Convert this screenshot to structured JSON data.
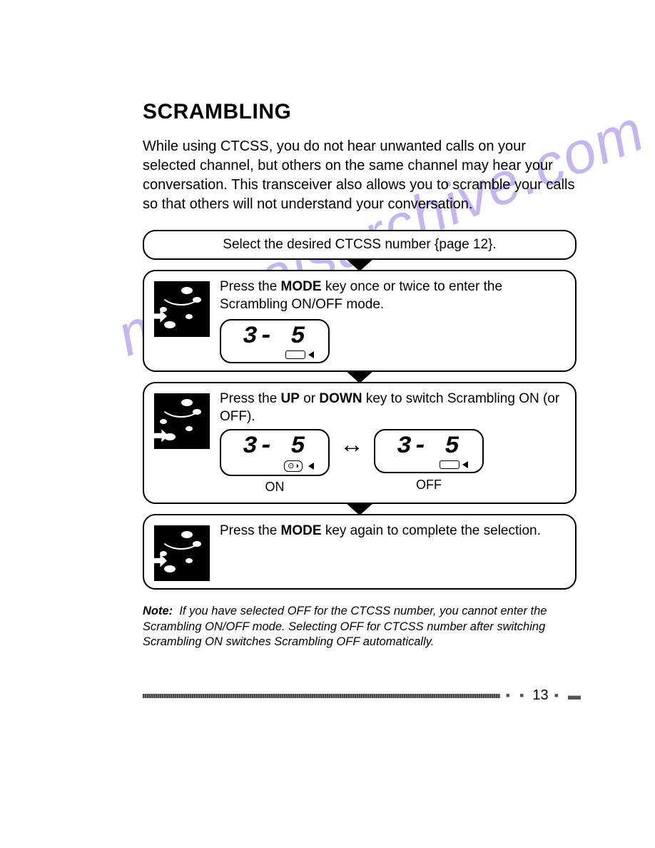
{
  "title": "SCRAMBLING",
  "intro": "While using CTCSS, you do not hear unwanted calls on your selected channel, but others on the same channel may hear your conversation. This transceiver also allows you to scramble your calls so that others will not understand your conversation.",
  "watermark": "manualsarchive.com",
  "steps": {
    "s1": "Select the desired CTCSS number {page 12}.",
    "s2_pre": "Press the ",
    "s2_key": "MODE",
    "s2_post": " key once or twice to enter the Scrambling ON/OFF mode.",
    "s3_pre": "Press the ",
    "s3_key1": "UP",
    "s3_mid": " or ",
    "s3_key2": "DOWN",
    "s3_post": " key to switch Scrambling ON (or OFF).",
    "s4_pre": "Press the ",
    "s4_key": "MODE",
    "s4_post": " key again to complete the selection."
  },
  "lcd": {
    "digits": "3- 5",
    "on_label": "ON",
    "off_label": "OFF"
  },
  "note_label": "Note:",
  "note_text": "If you have selected OFF for the CTCSS number, you cannot enter the Scrambling ON/OFF mode. Selecting OFF for CTCSS number after switching Scrambling ON switches Scrambling OFF automatically.",
  "page_number": "13",
  "colors": {
    "text": "#000000",
    "background": "#ffffff",
    "watermark": "#8a6de0",
    "border": "#000000"
  }
}
